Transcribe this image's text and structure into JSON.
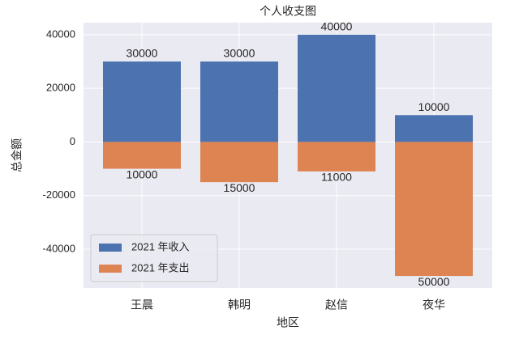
{
  "chart_data": {
    "type": "bar",
    "title": "个人收支图",
    "x_label": "地区",
    "y_label": "总金额",
    "categories": [
      "王晨",
      "韩明",
      "赵信",
      "夜华"
    ],
    "series": [
      {
        "name": "2021 年收入",
        "color": "#4c72b0",
        "values": [
          30000,
          30000,
          40000,
          10000
        ]
      },
      {
        "name": "2021 年支出",
        "color": "#dd8452",
        "values": [
          -10000,
          -15000,
          -11000,
          -50000
        ],
        "value_labels": [
          "10000",
          "15000",
          "11000",
          "50000"
        ]
      }
    ],
    "ylim": [
      -54500,
      44500
    ],
    "yticks": [
      -40000,
      -20000,
      0,
      20000,
      40000
    ],
    "grid": true,
    "legend": "lower left"
  }
}
